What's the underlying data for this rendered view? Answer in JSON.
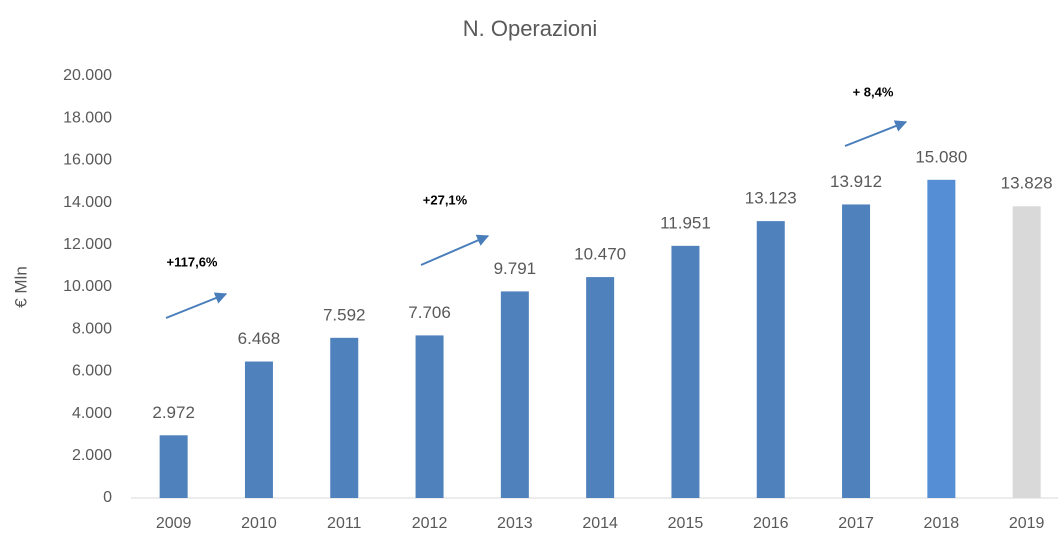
{
  "chart_data": {
    "type": "bar",
    "title": "N. Operazioni",
    "y_label": "€ Mln",
    "categories": [
      "2009",
      "2010",
      "2011",
      "2012",
      "2013",
      "2014",
      "2015",
      "2016",
      "2017",
      "2018",
      "2019"
    ],
    "values": [
      2972,
      6468,
      7592,
      7706,
      9791,
      10470,
      11951,
      13123,
      13912,
      15080,
      13828
    ],
    "value_labels": [
      "2.972",
      "6.468",
      "7.592",
      "7.706",
      "9.791",
      "10.470",
      "11.951",
      "13.123",
      "13.912",
      "15.080",
      "13.828"
    ],
    "colors": [
      "#4f81bd",
      "#4f81bd",
      "#4f81bd",
      "#4f81bd",
      "#4f81bd",
      "#4f81bd",
      "#4f81bd",
      "#4f81bd",
      "#4f81bd",
      "#558ed5",
      "#d9d9d9"
    ],
    "ylim": [
      0,
      20000
    ],
    "yticks": [
      0,
      {
        "value": 2000,
        "label": "2.000"
      },
      {
        "value": 4000,
        "label": "4.000"
      },
      {
        "value": 6000,
        "label": "6.000"
      },
      {
        "value": 8000,
        "label": "8.000"
      },
      {
        "value": 10000,
        "label": "10.000"
      },
      {
        "value": 12000,
        "label": "12.000"
      },
      {
        "value": 14000,
        "label": "14.000"
      },
      {
        "value": 16000,
        "label": "16.000"
      },
      {
        "value": 18000,
        "label": "18.000"
      },
      {
        "value": 20000,
        "label": "20.000"
      }
    ],
    "grid": false,
    "annotations": [
      "+117,6%",
      "+27,1%",
      "+ 8,4%"
    ]
  }
}
